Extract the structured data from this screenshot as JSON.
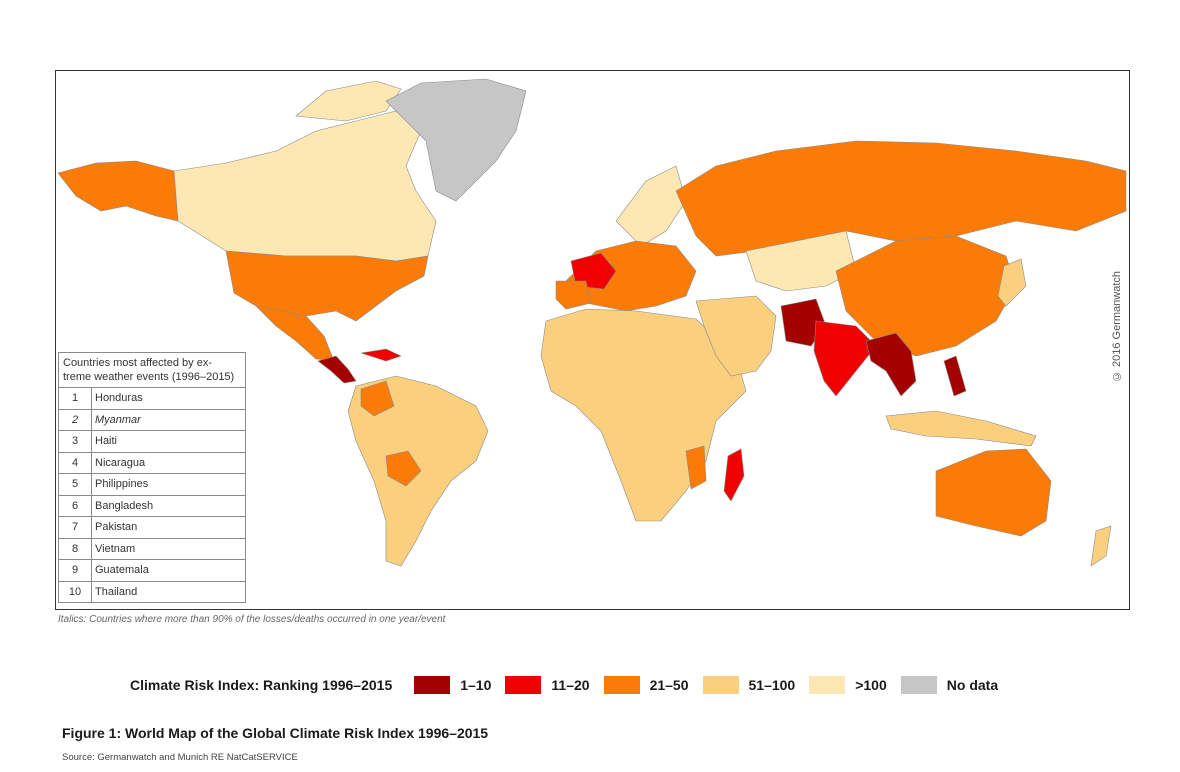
{
  "map": {
    "copyright": "© 2016 Germanwatch",
    "colors": {
      "r1_10": "#a50000",
      "r11_20": "#f00000",
      "r21_50": "#fb7b07",
      "r51_100": "#fad07e",
      "r100": "#fde7b2",
      "nodata": "#c6c6c6"
    }
  },
  "table": {
    "header": "Countries most affected by ex- treme weather events (1996–2015)",
    "rows": [
      {
        "rank": "1",
        "country": "Honduras",
        "italic": false
      },
      {
        "rank": "2",
        "country": "Myanmar",
        "italic": true
      },
      {
        "rank": "3",
        "country": "Haiti",
        "italic": false
      },
      {
        "rank": "4",
        "country": "Nicaragua",
        "italic": false
      },
      {
        "rank": "5",
        "country": "Philippines",
        "italic": false
      },
      {
        "rank": "6",
        "country": "Bangladesh",
        "italic": false
      },
      {
        "rank": "7",
        "country": "Pakistan",
        "italic": false
      },
      {
        "rank": "8",
        "country": "Vietnam",
        "italic": false
      },
      {
        "rank": "9",
        "country": "Guatemala",
        "italic": false
      },
      {
        "rank": "10",
        "country": "Thailand",
        "italic": false
      }
    ]
  },
  "footnote": "Italics: Countries where more than 90% of the losses/deaths occurred in one year/event",
  "legend": {
    "title": "Climate Risk Index: Ranking 1996–2015",
    "items": [
      {
        "label": "1–10",
        "color": "#a50000"
      },
      {
        "label": "11–20",
        "color": "#f00000"
      },
      {
        "label": "21–50",
        "color": "#fb7b07"
      },
      {
        "label": "51–100",
        "color": "#fad07e"
      },
      {
        "label": ">100",
        "color": "#fde7b2"
      },
      {
        "label": "No data",
        "color": "#c6c6c6"
      }
    ]
  },
  "caption": "Figure 1: World Map of the Global Climate Risk Index 1996–2015",
  "source": "Source: Germanwatch and Munich RE NatCatSERVICE"
}
